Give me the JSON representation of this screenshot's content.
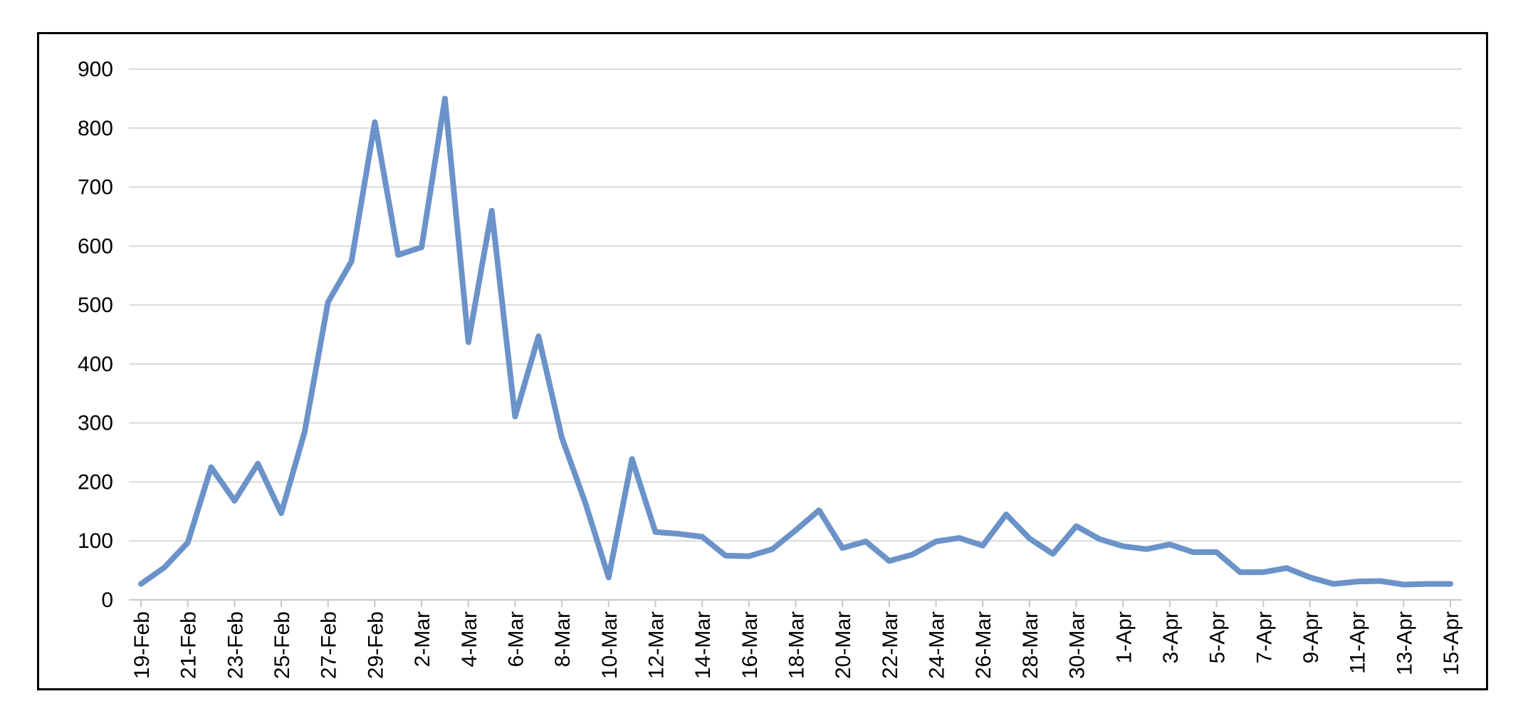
{
  "chart_data": {
    "type": "line",
    "title": "",
    "xlabel": "",
    "ylabel": "",
    "ylim": [
      0,
      900
    ],
    "yticks": [
      0,
      100,
      200,
      300,
      400,
      500,
      600,
      700,
      800,
      900
    ],
    "grid": true,
    "legend": "none",
    "line_color": "#6b93c9",
    "x_tick_labels": [
      "19-Feb",
      "21-Feb",
      "23-Feb",
      "25-Feb",
      "27-Feb",
      "29-Feb",
      "2-Mar",
      "4-Mar",
      "6-Mar",
      "8-Mar",
      "10-Mar",
      "12-Mar",
      "14-Mar",
      "16-Mar",
      "18-Mar",
      "20-Mar",
      "22-Mar",
      "24-Mar",
      "26-Mar",
      "28-Mar",
      "30-Mar",
      "1-Apr",
      "3-Apr",
      "5-Apr",
      "7-Apr",
      "9-Apr",
      "11-Apr",
      "13-Apr",
      "15-Apr"
    ],
    "x": [
      "19-Feb",
      "20-Feb",
      "21-Feb",
      "22-Feb",
      "23-Feb",
      "24-Feb",
      "25-Feb",
      "26-Feb",
      "27-Feb",
      "28-Feb",
      "29-Feb",
      "1-Mar",
      "2-Mar",
      "3-Mar",
      "4-Mar",
      "5-Mar",
      "6-Mar",
      "7-Mar",
      "8-Mar",
      "9-Mar",
      "10-Mar",
      "11-Mar",
      "12-Mar",
      "13-Mar",
      "14-Mar",
      "15-Mar",
      "16-Mar",
      "17-Mar",
      "18-Mar",
      "19-Mar",
      "20-Mar",
      "21-Mar",
      "22-Mar",
      "23-Mar",
      "24-Mar",
      "25-Mar",
      "26-Mar",
      "27-Mar",
      "28-Mar",
      "29-Mar",
      "30-Mar",
      "31-Mar",
      "1-Apr",
      "2-Apr",
      "3-Apr",
      "4-Apr",
      "5-Apr",
      "6-Apr",
      "7-Apr",
      "8-Apr",
      "9-Apr",
      "10-Apr",
      "11-Apr",
      "12-Apr",
      "13-Apr",
      "14-Apr",
      "15-Apr"
    ],
    "values": [
      27,
      55,
      97,
      225,
      168,
      231,
      147,
      285,
      505,
      574,
      810,
      585,
      598,
      850,
      437,
      660,
      311,
      447,
      275,
      165,
      38,
      239,
      115,
      112,
      107,
      75,
      74,
      86,
      118,
      152,
      88,
      99,
      66,
      77,
      99,
      105,
      92,
      145,
      104,
      78,
      125,
      103,
      91,
      86,
      94,
      81,
      81,
      47,
      47,
      54,
      38,
      27,
      31,
      32,
      26,
      27,
      27
    ]
  }
}
